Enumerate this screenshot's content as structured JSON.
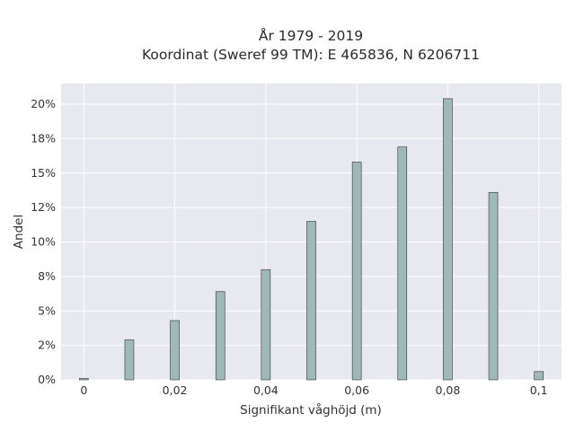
{
  "title_line1": "År 1979 - 2019",
  "title_line2": "Koordinat (Sweref 99 TM): E 465836, N 6206711",
  "chart_data": {
    "type": "bar",
    "title": "År 1979 - 2019\nKoordinat (Sweref 99 TM): E 465836, N 6206711",
    "xlabel": "Signifikant våghöjd (m)",
    "ylabel": "Andel",
    "x": [
      0,
      0.01,
      0.02,
      0.03,
      0.04,
      0.05,
      0.06,
      0.07,
      0.08,
      0.09,
      0.1
    ],
    "values": [
      0.1,
      2.9,
      4.3,
      6.4,
      8.0,
      11.5,
      15.8,
      16.9,
      20.4,
      13.6,
      0.6
    ],
    "xlim": [
      -0.005,
      0.105
    ],
    "ylim": [
      0,
      21.5
    ],
    "y_ticks": [
      0,
      2.5,
      5,
      7.5,
      10,
      12.5,
      15,
      17.5,
      20
    ],
    "y_tick_labels": [
      "0%",
      "2%",
      "5%",
      "8%",
      "10%",
      "12%",
      "15%",
      "18%",
      "20%"
    ],
    "x_ticks": [
      0,
      0.02,
      0.04,
      0.06,
      0.08,
      0.1
    ],
    "x_tick_labels": [
      "0",
      "0,02",
      "0,04",
      "0,06",
      "0,08",
      "0,1"
    ],
    "grid": true,
    "bar_color": "#9fb8b8",
    "bar_edge_color": "#333333",
    "plot_background": "#e8e8f0"
  }
}
